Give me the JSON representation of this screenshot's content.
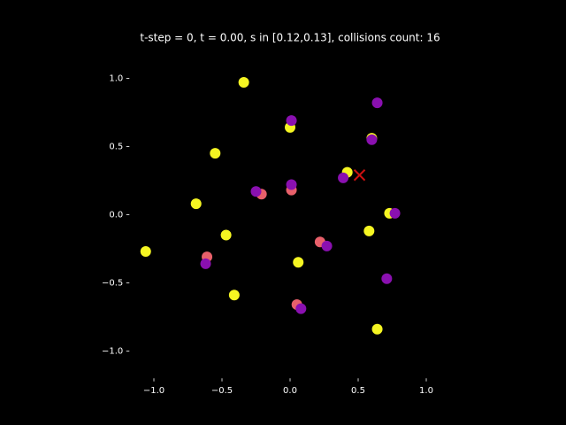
{
  "chart_data": {
    "type": "scatter",
    "title": "t-step = 0, t = 0.00, s in [0.12,0.13], collisions count: 16",
    "xlim": [
      -1.18,
      1.18
    ],
    "ylim": [
      -1.2,
      1.2
    ],
    "xticks": [
      {
        "value": -1,
        "label": "−1.0"
      },
      {
        "value": -0.5,
        "label": "−0.5"
      },
      {
        "value": 0,
        "label": "0.0"
      },
      0.5,
      {
        "value": 1,
        "label": "1.0"
      }
    ],
    "yticks": [
      {
        "value": -1,
        "label": "−1.0"
      },
      {
        "value": -0.5,
        "label": "−0.5"
      },
      {
        "value": 0,
        "label": "0.0"
      },
      0.5,
      {
        "value": 1,
        "label": "1.0"
      }
    ],
    "background": "#000000",
    "series": [
      {
        "color": "#e8606a",
        "marker": "circle",
        "x": [
          -0.21,
          0.01,
          0.22,
          0.05,
          -0.61
        ],
        "values": [
          0.15,
          0.18,
          -0.2,
          -0.66,
          -0.31
        ]
      },
      {
        "color": "#f5f522",
        "marker": "circle",
        "x": [
          -0.34,
          -0.55,
          -0.69,
          -1.06,
          -0.47,
          -0.41,
          0.06,
          0.58,
          0.64,
          0.42,
          0.73,
          0.0,
          0.6
        ],
        "values": [
          0.97,
          0.45,
          0.08,
          -0.27,
          -0.15,
          -0.59,
          -0.35,
          -0.12,
          -0.84,
          0.31,
          0.01,
          0.64,
          0.56
        ]
      },
      {
        "color": "#8a10b0",
        "marker": "circle",
        "x": [
          0.01,
          0.64,
          0.6,
          0.39,
          0.77,
          0.71,
          0.27,
          0.08,
          -0.62,
          -0.25,
          0.01
        ],
        "values": [
          0.69,
          0.82,
          0.55,
          0.27,
          0.01,
          -0.47,
          -0.23,
          -0.69,
          -0.36,
          0.17,
          0.22
        ]
      },
      {
        "color": "#cc1111",
        "marker": "x",
        "x": [
          0.51
        ],
        "values": [
          0.29
        ]
      }
    ]
  }
}
